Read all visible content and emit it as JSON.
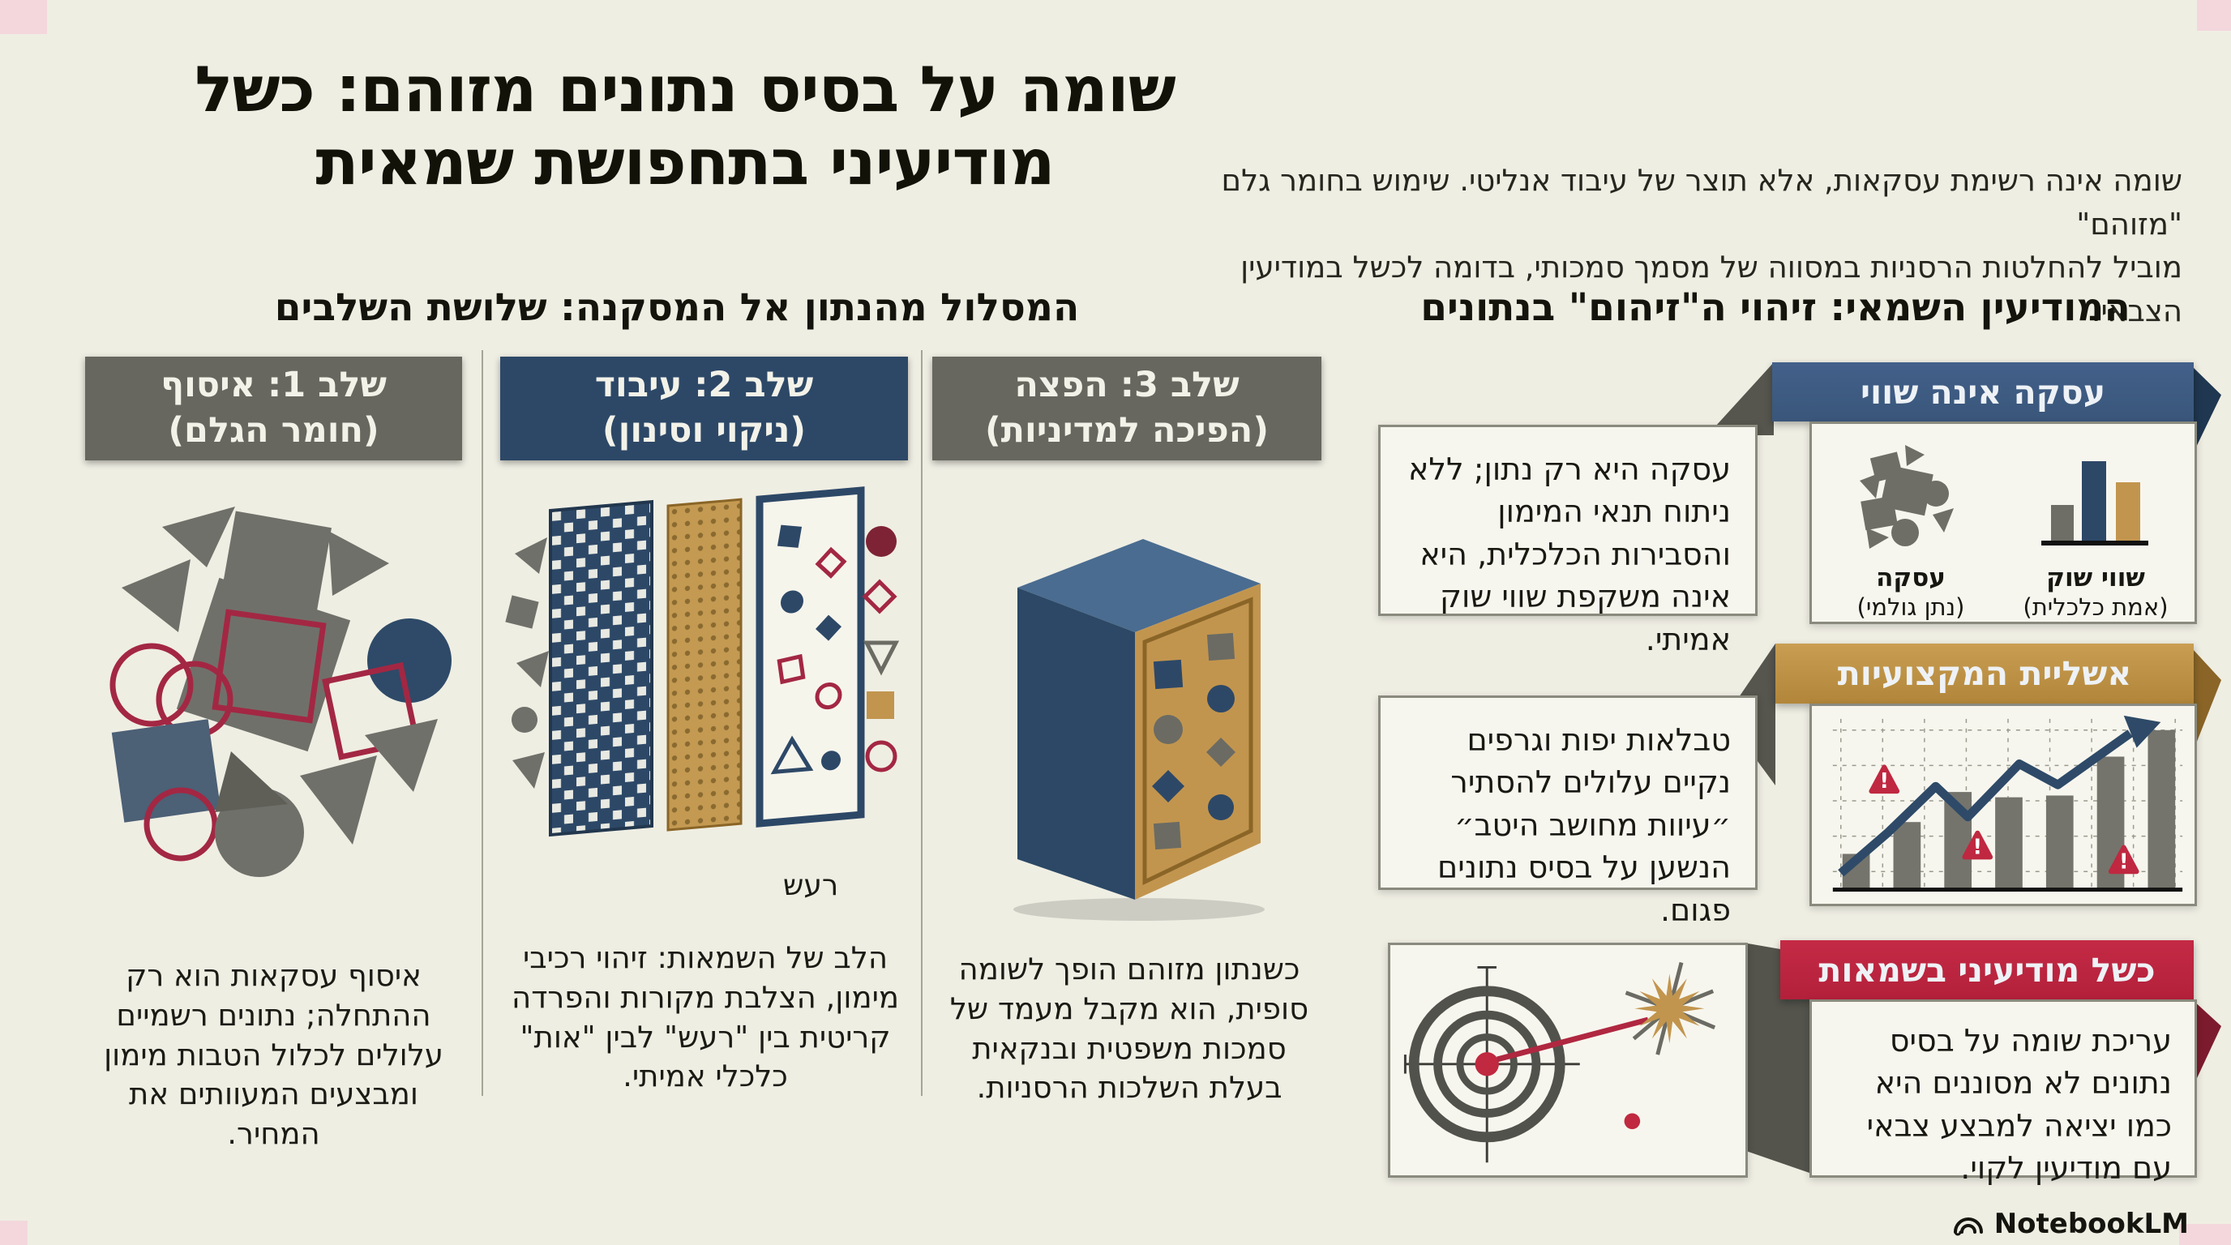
{
  "page": {
    "title": "שומה על בסיס נתונים מזוהם: כשל מודיעיני בתחפושת שמאית",
    "subtitle_line1": "שומה אינה רשימת עסקאות, אלא תוצר של עיבוד אנליטי. שימוש בחומר גלם \"מזוהם\"",
    "subtitle_line2": "מוביל להחלטות הרסניות במסווה של מסמך סמכותי, בדומה לכשל במודיעין הצבאי."
  },
  "left_section": {
    "header": "המסלול מהנתון אל המסקנה: שלושת השלבים",
    "stages": [
      {
        "title_line1": "שלב 1: איסוף",
        "title_line2": "(חומר הגלם)",
        "description": "איסוף עסקאות הוא רק ההתחלה; נתונים רשמיים עלולים לכלול הטבות מימון ומבצעים המעוותים את המחיר.",
        "illustration": "pile-of-raw-shapes"
      },
      {
        "title_line1": "שלב 2: עיבוד",
        "title_line2": "(ניקוי וסינון)",
        "noise_label": "רעש",
        "description": "הלב של השמאות: זיהוי רכיבי מימון, הצלבת מקורות והפרדה קריטית בין \"רעש\" לבין \"אות\" כלכלי אמיתי.",
        "illustration": "filter-screens"
      },
      {
        "title_line1": "שלב 3: הפצה",
        "title_line2": "(הפיכה למדיניות)",
        "description": "כשנתון מזוהם הופך לשומה סופית, הוא מקבל מעמד של סמכות משפטית ובנקאית בעלת השלכות הרסניות.",
        "illustration": "monolith-block"
      }
    ]
  },
  "right_section": {
    "header": "המודיעין השמאי: זיהוי ה\"זיהום\" בנתונים",
    "cards": [
      {
        "title": "עסקה אינה שווי",
        "accent_color": "#3d5a7e",
        "description": "עסקה היא רק נתון; ללא ניתוח תנאי המימון והסבירות הכלכלית, היא אינה משקפת שווי שוק אמיתי.",
        "icon_labels": [
          {
            "title": "עסקה",
            "subtitle": "(נתן גולמי)",
            "icon": "jumbled-shapes-icon"
          },
          {
            "title": "שווי שוק",
            "subtitle": "(אמת כלכלית)",
            "icon": "bar-chart-icon"
          }
        ]
      },
      {
        "title": "אשליית המקצועיות",
        "accent_color": "#c0953f",
        "description": "טבלאות יפות וגרפים נקיים עלולים להסתיר ״עיוות מחושב היטב״ הנשען על בסיס נתונים פגום.",
        "icon": "rising-chart-with-warnings"
      },
      {
        "title": "כשל מודיעיני בשמאות",
        "accent_color": "#c02440",
        "description": "עריכת שומה על בסיס נתונים לא מסוננים היא כמו יציאה למבצע צבאי עם מודיעין לקוי.",
        "icon": "missed-target"
      }
    ]
  },
  "chart_data": {
    "type": "bar",
    "context": "decorative bar chart inside the 'אשליית המקצועיות' card — no axis or tick labels shown",
    "categories": [
      "",
      "",
      "",
      "",
      "",
      "",
      ""
    ],
    "values": [
      20,
      38,
      55,
      52,
      53,
      75,
      90
    ],
    "overlay": "rising blue trend arrow with zigzag",
    "warning_markers": 3,
    "grid": "dashed"
  },
  "footer": {
    "brand": "NotebookLM",
    "logo": "swirl-icon"
  },
  "palette": {
    "background": "#efeee3",
    "panel": "#f7f6ee",
    "grey_box": "#67675f",
    "navy": "#2d4867",
    "ribbon_blue": "#3d5a7e",
    "gold": "#c2954e",
    "red": "#c02440",
    "outline_red": "#a32743",
    "text": "#171712"
  }
}
